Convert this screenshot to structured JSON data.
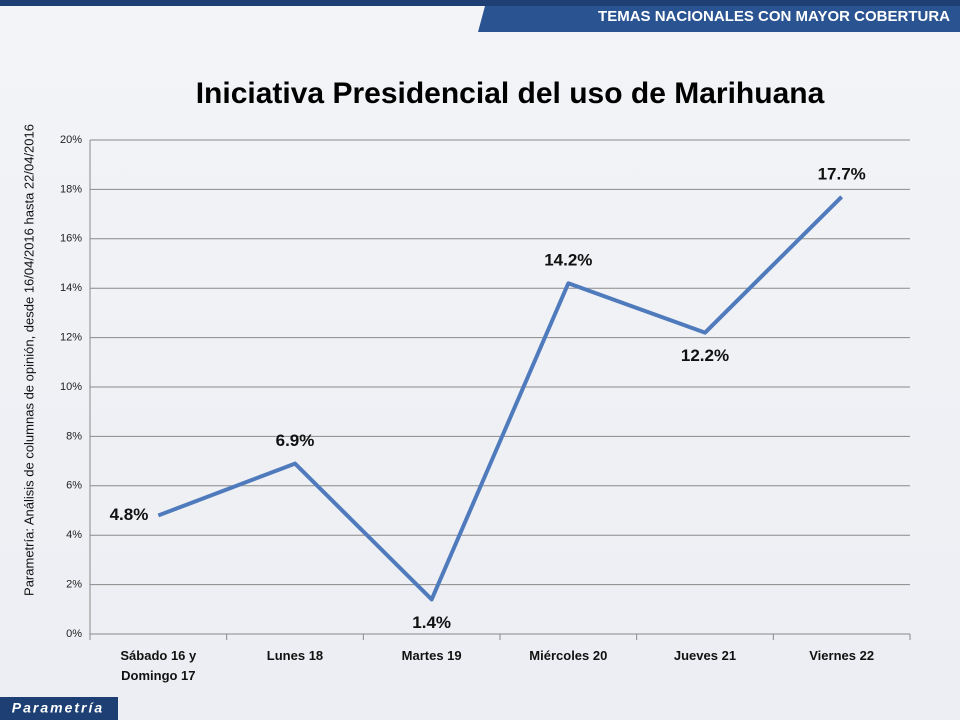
{
  "header": {
    "banner": "TEMAS NACIONALES CON MAYOR COBERTURA"
  },
  "side_note": "Parametría: Análisis de columnas de opinión, desde 16/04/2016 hasta 22/04/2016",
  "footer": {
    "logo": "Parametría"
  },
  "chart_data": {
    "type": "line",
    "title": "Iniciativa Presidencial del uso de Marihuana",
    "categories": [
      "Sábado 16 y Domingo 17",
      "Lunes 18",
      "Martes 19",
      "Miércoles 20",
      "Jueves 21",
      "Viernes 22"
    ],
    "values": [
      4.8,
      6.9,
      1.4,
      14.2,
      12.2,
      17.7
    ],
    "value_labels": [
      "4.8%",
      "6.9%",
      "1.4%",
      "14.2%",
      "12.2%",
      "17.7%"
    ],
    "color": "#4f7bbd",
    "ylim": [
      0,
      20
    ],
    "yticks": [
      {
        "value": 0,
        "label": "0%"
      },
      {
        "value": 2,
        "label": "2%"
      },
      {
        "value": 4,
        "label": "4%"
      },
      {
        "value": 6,
        "label": "6%"
      },
      {
        "value": 8,
        "label": "8%"
      },
      {
        "value": 10,
        "label": "10%"
      },
      {
        "value": 12,
        "label": "12%"
      },
      {
        "value": 14,
        "label": "14%"
      },
      {
        "value": 16,
        "label": "16%"
      },
      {
        "value": 18,
        "label": "18%"
      },
      {
        "value": 20,
        "label": "20%"
      }
    ],
    "grid": true
  }
}
